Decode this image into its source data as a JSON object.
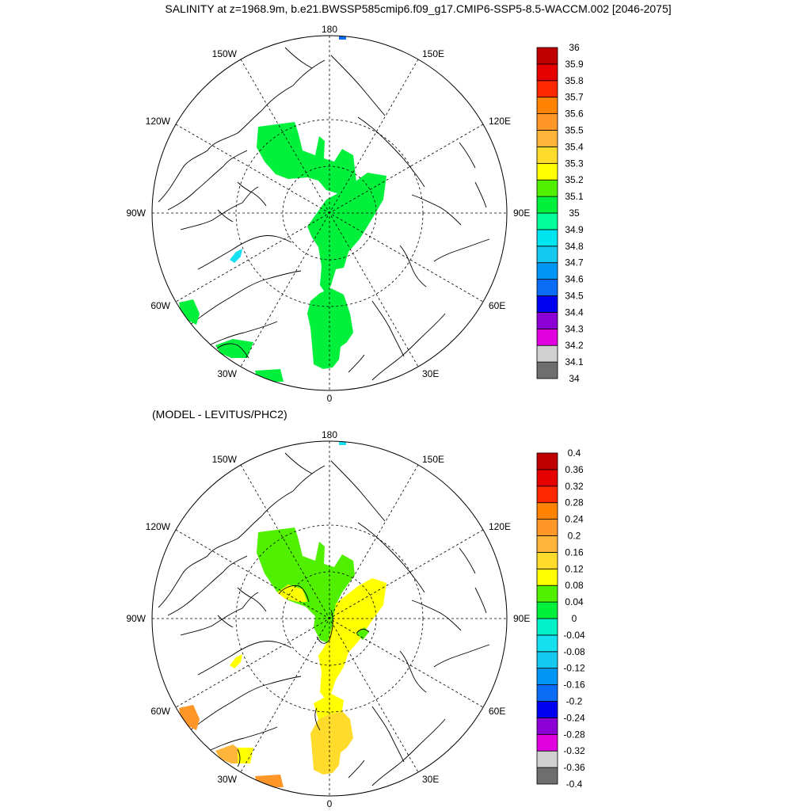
{
  "title": "SALINITY at z=1968.9m, b.e21.BWSSP585cmip6.f09_g17.CMIP6-SSP5-8.5-WACCM.002 [2046-2075]",
  "subtitle": "(MODEL - LEVITUS/PHC2)",
  "lon_labels": {
    "top": "180",
    "bottom": "0",
    "left": "90W",
    "right": "90E",
    "nw1": "150W",
    "ne1": "150E",
    "nw2": "120W",
    "ne2": "120E",
    "sw1": "60W",
    "se1": "60E",
    "sw2": "30W",
    "se2": "30E"
  },
  "colors": {
    "panel1": [
      "#6e6e6e",
      "#d0d0d0",
      "#e000e0",
      "#8c00d6",
      "#0000f0",
      "#0a6cf5",
      "#0096f5",
      "#14c8f0",
      "#00e6f0",
      "#00ff9a",
      "#00f03c",
      "#50f000",
      "#ffff00",
      "#ffdc2c",
      "#ffb43c",
      "#ff9628",
      "#ff8200",
      "#ff2800",
      "#e60000",
      "#c00000"
    ],
    "panel2": [
      "#6e6e6e",
      "#d0d0d0",
      "#e000e0",
      "#8c00d6",
      "#0000f0",
      "#0a6cf5",
      "#0096f5",
      "#14c8f0",
      "#14e0f0",
      "#00f0c8",
      "#00f03c",
      "#50f000",
      "#ffff00",
      "#ffdc2c",
      "#ffb43c",
      "#ff9628",
      "#ff8200",
      "#ff2800",
      "#e60000",
      "#c00000"
    ]
  },
  "colorbar1": [
    "36",
    "35.9",
    "35.8",
    "35.7",
    "35.6",
    "35.5",
    "35.4",
    "35.3",
    "35.2",
    "35.1",
    "35",
    "34.9",
    "34.8",
    "34.7",
    "34.6",
    "34.5",
    "34.4",
    "34.3",
    "34.2",
    "34.1",
    "34"
  ],
  "colorbar2": [
    "0.4",
    "0.36",
    "0.32",
    "0.28",
    "0.24",
    "0.2",
    "0.16",
    "0.12",
    "0.08",
    "0.04",
    "0",
    "-0.04",
    "-0.08",
    "-0.12",
    "-0.16",
    "-0.2",
    "-0.24",
    "-0.28",
    "-0.32",
    "-0.36",
    "-0.4"
  ]
}
